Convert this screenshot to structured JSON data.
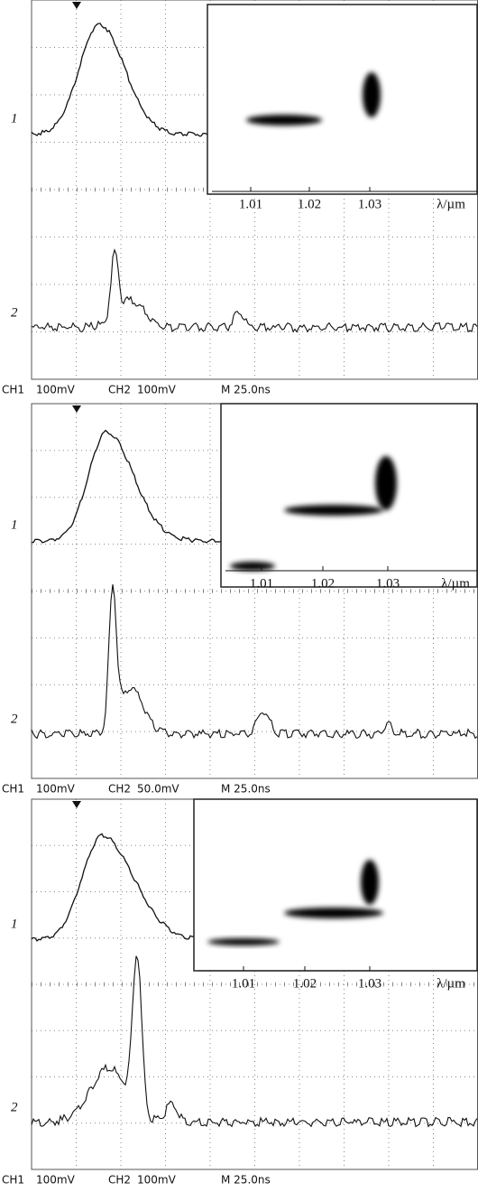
{
  "panels": [
    {
      "trace_labels": [
        "1",
        "2"
      ],
      "status": [
        "CH1",
        "100mV",
        "CH2",
        "100mV",
        "M 25.0ns"
      ],
      "inset": {
        "ticks": [
          "1.01",
          "1.02",
          "1.03"
        ],
        "axis_label": "λ/µm"
      }
    },
    {
      "trace_labels": [
        "1",
        "2"
      ],
      "status": [
        "CH1",
        "100mV",
        "CH2",
        "50.0mV",
        "M 25.0ns"
      ],
      "inset": {
        "ticks": [
          "1.01",
          "1.02",
          "1.03"
        ],
        "axis_label": "λ/µm"
      }
    },
    {
      "trace_labels": [
        "1",
        "2"
      ],
      "status": [
        "CH1",
        "100mV",
        "CH2",
        "100mV",
        "M 25.0ns"
      ],
      "inset": {
        "ticks": [
          "1.01",
          "1.02",
          "1.03"
        ],
        "axis_label": "λ/µm"
      }
    }
  ]
}
